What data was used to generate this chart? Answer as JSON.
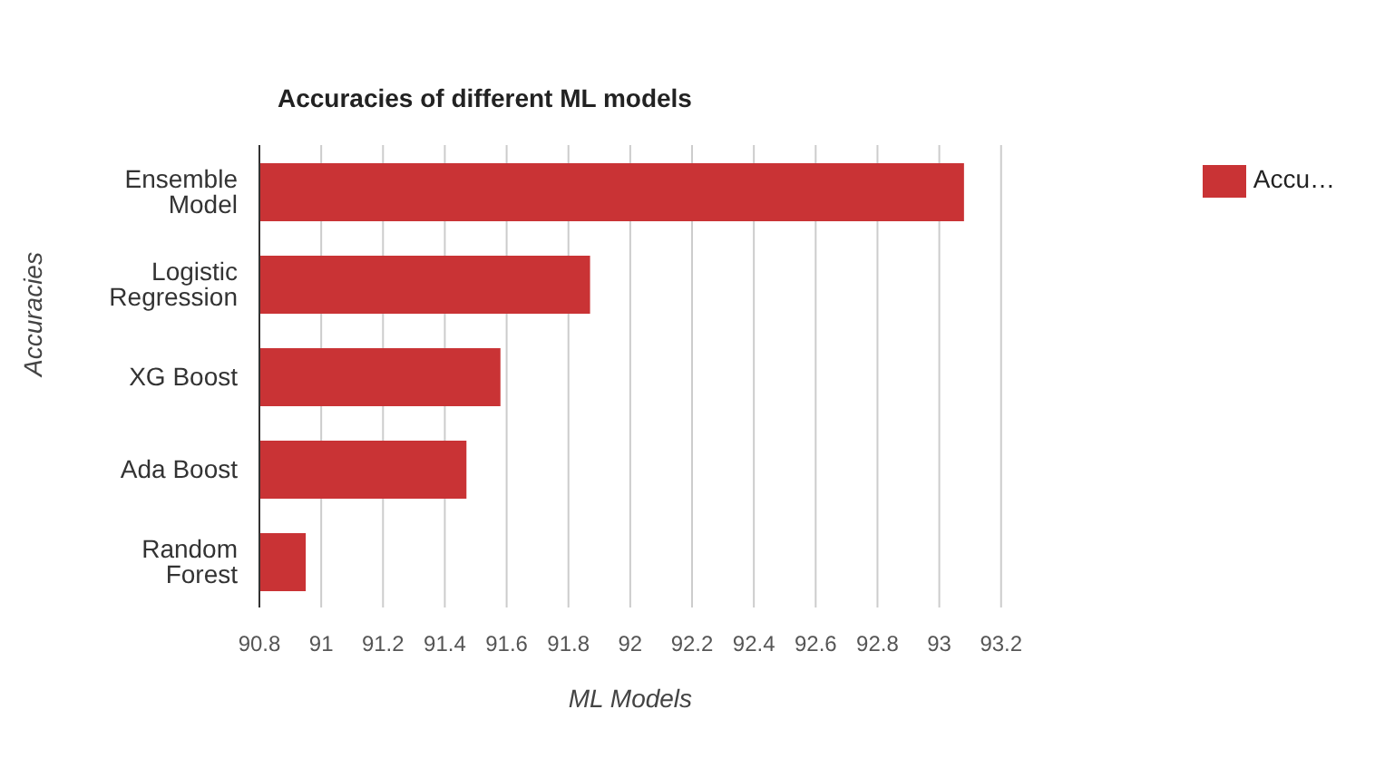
{
  "chart_data": {
    "type": "bar",
    "orientation": "horizontal",
    "title": "Accuracies of different ML models",
    "xlabel": "ML Models",
    "ylabel": "Accuracies",
    "categories": [
      "Ensemble Model",
      "Logistic Regression",
      "XG Boost",
      "Ada Boost",
      "Random Forest"
    ],
    "series": [
      {
        "name": "Accu…",
        "color": "#c93335",
        "values": [
          93.08,
          91.87,
          91.58,
          91.47,
          90.95
        ]
      }
    ],
    "xlim": [
      90.8,
      93.2
    ],
    "xticks": [
      90.8,
      91,
      91.2,
      91.4,
      91.6,
      91.8,
      92,
      92.2,
      92.4,
      92.6,
      92.8,
      93,
      93.2
    ],
    "grid": "x",
    "legend": "top right"
  }
}
